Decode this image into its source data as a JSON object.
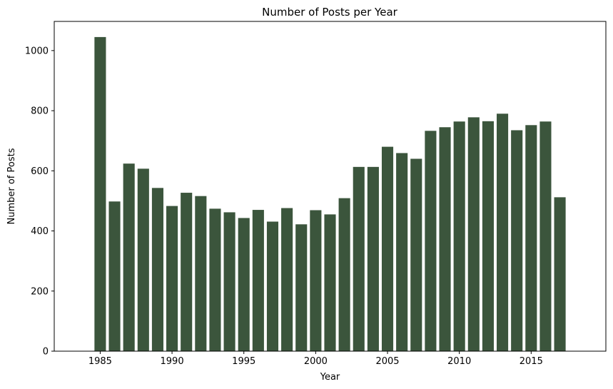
{
  "chart_data": {
    "type": "bar",
    "title": "Number of Posts per Year",
    "xlabel": "Year",
    "ylabel": "Number of Posts",
    "x": [
      1985,
      1986,
      1987,
      1988,
      1989,
      1990,
      1991,
      1992,
      1993,
      1994,
      1995,
      1996,
      1997,
      1998,
      1999,
      2000,
      2001,
      2002,
      2003,
      2004,
      2005,
      2006,
      2007,
      2008,
      2009,
      2010,
      2011,
      2012,
      2013,
      2014,
      2015,
      2016,
      2017
    ],
    "values": [
      1045,
      498,
      624,
      607,
      543,
      483,
      527,
      516,
      474,
      462,
      443,
      470,
      431,
      476,
      422,
      469,
      455,
      509,
      613,
      613,
      680,
      659,
      640,
      733,
      745,
      764,
      778,
      765,
      790,
      735,
      752,
      764,
      512
    ],
    "xlim": [
      1981.8,
      2020.2
    ],
    "ylim": [
      0,
      1097
    ],
    "xticks": [
      1985,
      1990,
      1995,
      2000,
      2005,
      2010,
      2015
    ],
    "yticks": [
      0,
      200,
      400,
      600,
      800,
      1000
    ],
    "bar_color": "#3b553c",
    "legend": "none",
    "grid": false
  }
}
